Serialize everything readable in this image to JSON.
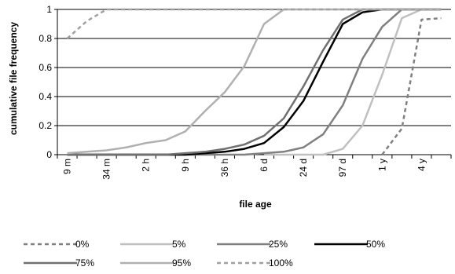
{
  "chart_data": {
    "type": "line",
    "xlabel": "file age",
    "ylabel": "cumulative file frequency",
    "ylim": [
      0,
      1
    ],
    "y_ticks": [
      "0",
      "0.2",
      "0.4",
      "0.6",
      "0.8",
      "1"
    ],
    "categories": [
      "9 m",
      "",
      "34 m",
      "",
      "2 h",
      "",
      "9 h",
      "",
      "36 h",
      "",
      "6 d",
      "",
      "24 d",
      "",
      "97 d",
      "",
      "1 y",
      "",
      "4 y",
      ""
    ],
    "grid": "horizontal",
    "legend_position": "bottom",
    "series": [
      {
        "name": "0%",
        "color": "#808080",
        "dash": "dashed",
        "values": [
          null,
          null,
          null,
          null,
          null,
          null,
          null,
          null,
          null,
          null,
          null,
          null,
          null,
          null,
          null,
          null,
          0.0,
          0.18,
          0.93,
          0.94
        ]
      },
      {
        "name": "5%",
        "color": "#c0c0c0",
        "dash": "solid",
        "values": [
          null,
          null,
          null,
          null,
          null,
          null,
          null,
          null,
          null,
          null,
          0.0,
          0.0,
          0.0,
          0.0,
          0.04,
          0.2,
          0.55,
          0.94,
          1.0,
          1.0
        ]
      },
      {
        "name": "25%",
        "color": "#808080",
        "dash": "solid",
        "values": [
          0.0,
          0.0,
          0.0,
          0.0,
          0.0,
          0.0,
          0.0,
          0.0,
          0.0,
          0.0,
          0.01,
          0.02,
          0.05,
          0.14,
          0.34,
          0.66,
          0.88,
          1.0,
          1.0,
          1.0
        ]
      },
      {
        "name": "50%",
        "color": "#000000",
        "dash": "solid",
        "values": [
          0.0,
          0.0,
          0.0,
          0.0,
          0.0,
          0.0,
          0.0,
          0.01,
          0.02,
          0.04,
          0.08,
          0.19,
          0.37,
          0.64,
          0.9,
          0.98,
          1.0,
          1.0,
          1.0,
          1.0
        ]
      },
      {
        "name": "75%",
        "color": "#707070",
        "dash": "solid",
        "values": [
          0.0,
          0.0,
          0.0,
          0.0,
          0.0,
          0.0,
          0.01,
          0.02,
          0.04,
          0.07,
          0.13,
          0.25,
          0.47,
          0.72,
          0.93,
          1.0,
          1.0,
          1.0,
          1.0,
          1.0
        ]
      },
      {
        "name": "95%",
        "color": "#b0b0b0",
        "dash": "solid",
        "values": [
          0.01,
          0.02,
          0.03,
          0.05,
          0.08,
          0.1,
          0.16,
          0.3,
          0.43,
          0.61,
          0.9,
          1.0,
          1.0,
          1.0,
          1.0,
          1.0,
          1.0,
          1.0,
          1.0,
          1.0
        ]
      },
      {
        "name": "100%",
        "color": "#a0a0a0",
        "dash": "dashed",
        "values": [
          0.8,
          0.92,
          1.0,
          1.0,
          1.0,
          1.0,
          1.0,
          1.0,
          1.0,
          1.0,
          1.0,
          1.0,
          1.0,
          1.0,
          1.0,
          1.0,
          1.0,
          1.0,
          1.0,
          1.0
        ]
      }
    ]
  }
}
